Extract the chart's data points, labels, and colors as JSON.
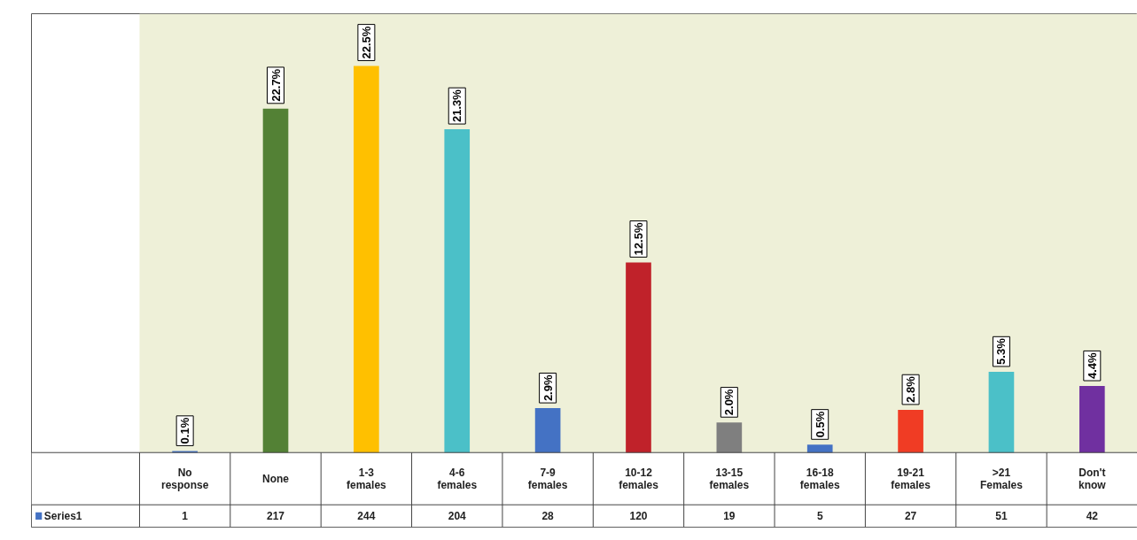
{
  "chart_data": {
    "type": "bar",
    "categories": [
      "No response",
      "None",
      "1-3 females",
      "4-6 females",
      "7-9 females",
      "10-12 females",
      "13-15 females",
      "16-18 females",
      "19-21 females",
      ">21 Females",
      "Don't know"
    ],
    "series": [
      {
        "name": "Series1",
        "color": "#4472c4",
        "values": [
          1,
          217,
          244,
          204,
          28,
          120,
          19,
          5,
          27,
          51,
          42
        ],
        "colors": [
          "#4472c4",
          "#538135",
          "#ffc000",
          "#4bc0c8",
          "#4472c4",
          "#c0222a",
          "#7f7f7f",
          "#4472c4",
          "#f03c24",
          "#4bc0c8",
          "#7030a0"
        ]
      }
    ],
    "annotations": [
      {
        "text": "0.1%",
        "x": "No response",
        "y": 1
      },
      {
        "text": "22.7%",
        "x": "None",
        "y": 217
      },
      {
        "text": "22.5%",
        "x": "1-3 females",
        "y": 244
      },
      {
        "text": "21.3%",
        "x": "4-6 females",
        "y": 204
      },
      {
        "text": "2.9%",
        "x": "7-9 females",
        "y": 28
      },
      {
        "text": "12.5%",
        "x": "10-12 females",
        "y": 120
      },
      {
        "text": "2.0%",
        "x": "13-15 females",
        "y": 19
      },
      {
        "text": "0.5%",
        "x": "16-18 females",
        "y": 5
      },
      {
        "text": "2.8%",
        "x": "19-21 females",
        "y": 27
      },
      {
        "text": "5.3%",
        "x": ">21 Females",
        "y": 51
      },
      {
        "text": "4.4%",
        "x": "Don't know",
        "y": 42
      }
    ],
    "data_labels": true,
    "legend": "bottom left",
    "grid": false
  }
}
